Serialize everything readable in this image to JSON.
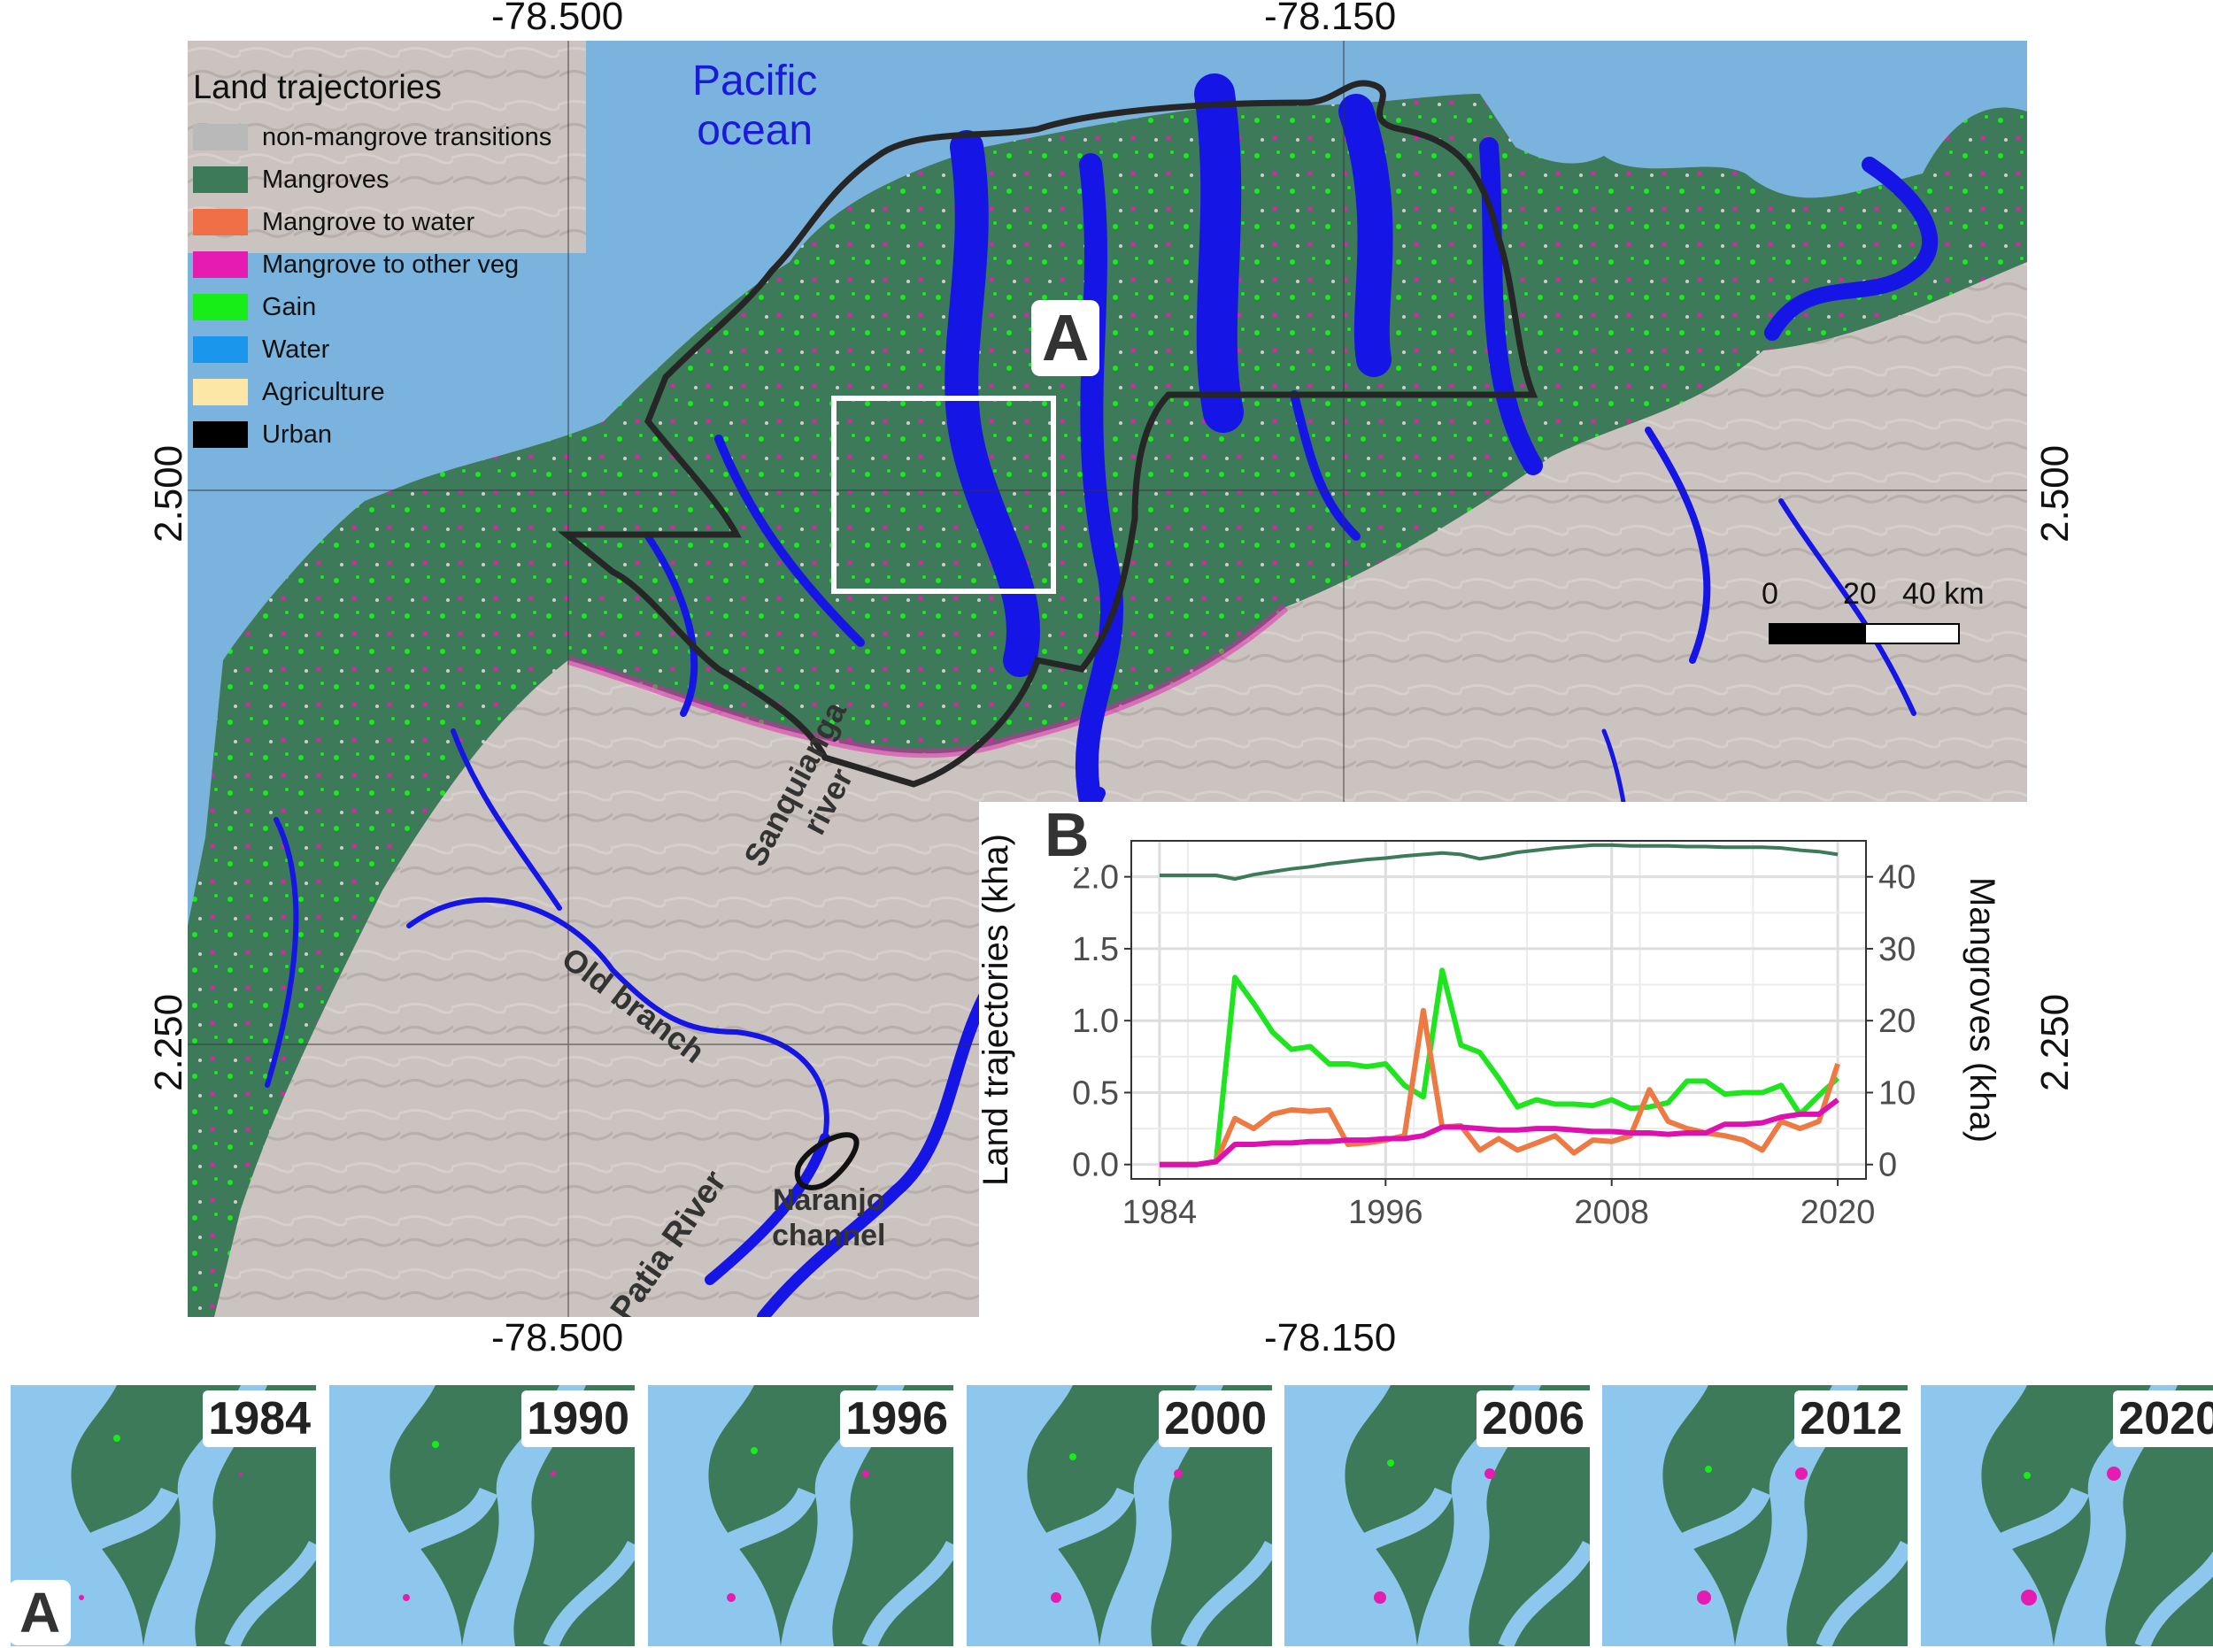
{
  "coords": {
    "top_left": "-78.500",
    "top_right": "-78.150",
    "bottom_left": "-78.500",
    "bottom_right": "-78.150",
    "left_upper": "2.500",
    "left_lower": "2.250",
    "right_upper": "2.500",
    "right_lower": "2.250"
  },
  "legend": {
    "title": "Land trajectories",
    "items": [
      {
        "label": "non-mangrove transitions",
        "color": "#b9b9b9"
      },
      {
        "label": "Mangroves",
        "color": "#3d7a59"
      },
      {
        "label": "Mangrove to water",
        "color": "#ef7047"
      },
      {
        "label": "Mangrove to other veg",
        "color": "#e61cb0"
      },
      {
        "label": "Gain",
        "color": "#17ee17"
      },
      {
        "label": "Water",
        "color": "#1a96ec"
      },
      {
        "label": "Agriculture",
        "color": "#fde7a6"
      },
      {
        "label": "Urban",
        "color": "#000000"
      }
    ]
  },
  "map": {
    "ocean_label": "Pacific ocean",
    "ocean_label_lines": [
      "Pacific",
      "ocean"
    ],
    "panel_a_label": "A",
    "river_labels": {
      "sanquianga": [
        "Sanquianga",
        "river"
      ],
      "old_branch": "Old branch",
      "patia": "Patia River",
      "naranjo": [
        "Naranjo",
        "channel"
      ]
    },
    "scale_bar": {
      "ticks": [
        "0",
        "20",
        "40 km"
      ]
    },
    "colors": {
      "ocean": "#7ab4de",
      "river": "#1515e6",
      "land": "#c9c1bd",
      "mangrove": "#3d7a59"
    }
  },
  "chart_panel_label": "B",
  "chart_data": {
    "type": "line",
    "ylabel_left": "Land trajectories (kha)",
    "ylabel_right": "Mangroves (kha)",
    "x_ticks": [
      1984,
      1996,
      2008,
      2020
    ],
    "xlim": [
      1982.5,
      2021.5
    ],
    "ylim_left": [
      -0.1,
      2.25
    ],
    "left_ticks": [
      "0.0",
      "0.5",
      "1.0",
      "1.5",
      "2.0"
    ],
    "left_tick_values": [
      0,
      0.5,
      1,
      1.5,
      2
    ],
    "ylim_right": [
      -2,
      45
    ],
    "right_ticks": [
      "0",
      "10",
      "20",
      "30",
      "40"
    ],
    "right_tick_values": [
      0,
      10,
      20,
      30,
      40
    ],
    "grid": true,
    "x": [
      1984,
      1985,
      1986,
      1987,
      1988,
      1989,
      1990,
      1991,
      1992,
      1993,
      1994,
      1995,
      1996,
      1997,
      1998,
      1999,
      2000,
      2001,
      2002,
      2003,
      2004,
      2005,
      2006,
      2007,
      2008,
      2009,
      2010,
      2011,
      2012,
      2013,
      2014,
      2015,
      2016,
      2017,
      2018,
      2019,
      2020
    ],
    "series": [
      {
        "name": "Mangroves",
        "axis": "right",
        "color": "#3d7a59",
        "values": [
          40.2,
          40.2,
          40.2,
          40.2,
          39.7,
          40.3,
          40.7,
          41.1,
          41.4,
          41.8,
          42.1,
          42.4,
          42.6,
          42.9,
          43.1,
          43.3,
          43.1,
          42.5,
          42.9,
          43.4,
          43.7,
          44.0,
          44.2,
          44.4,
          44.4,
          44.3,
          44.3,
          44.3,
          44.2,
          44.2,
          44.1,
          44.1,
          44.1,
          44.0,
          43.7,
          43.5,
          43.1
        ]
      },
      {
        "name": "Gain",
        "axis": "left",
        "color": "#1fe51f",
        "values": [
          0.0,
          0.0,
          0.0,
          0.02,
          1.3,
          1.12,
          0.92,
          0.8,
          0.82,
          0.7,
          0.7,
          0.68,
          0.7,
          0.55,
          0.47,
          1.35,
          0.83,
          0.78,
          0.6,
          0.4,
          0.45,
          0.42,
          0.42,
          0.41,
          0.45,
          0.39,
          0.4,
          0.43,
          0.58,
          0.58,
          0.49,
          0.5,
          0.5,
          0.55,
          0.35,
          0.48,
          0.6
        ]
      },
      {
        "name": "Mangrove to water",
        "axis": "left",
        "color": "#ee7a43",
        "values": [
          0.0,
          0.0,
          0.0,
          0.02,
          0.32,
          0.25,
          0.35,
          0.38,
          0.37,
          0.38,
          0.14,
          0.15,
          0.17,
          0.2,
          1.07,
          0.26,
          0.27,
          0.1,
          0.18,
          0.1,
          0.15,
          0.2,
          0.08,
          0.17,
          0.16,
          0.2,
          0.52,
          0.3,
          0.25,
          0.22,
          0.2,
          0.17,
          0.1,
          0.3,
          0.25,
          0.3,
          0.7
        ]
      },
      {
        "name": "Mangrove to other veg",
        "axis": "left",
        "color": "#dd10b0",
        "values": [
          0.0,
          0.0,
          0.0,
          0.02,
          0.14,
          0.14,
          0.15,
          0.15,
          0.16,
          0.16,
          0.17,
          0.17,
          0.18,
          0.18,
          0.2,
          0.26,
          0.26,
          0.25,
          0.24,
          0.24,
          0.25,
          0.25,
          0.24,
          0.23,
          0.23,
          0.22,
          0.22,
          0.21,
          0.22,
          0.22,
          0.28,
          0.28,
          0.29,
          0.33,
          0.35,
          0.35,
          0.45
        ]
      }
    ]
  },
  "thumbnails": {
    "years": [
      "1984",
      "1990",
      "1996",
      "2000",
      "2006",
      "2012",
      "2020"
    ],
    "panel_label": "A"
  }
}
